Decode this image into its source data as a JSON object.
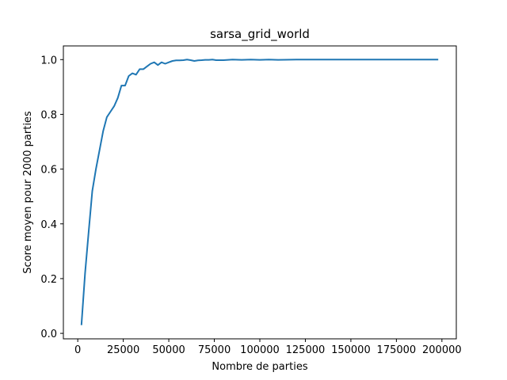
{
  "chart_data": {
    "type": "line",
    "title": "sarsa_grid_world",
    "xlabel": "Nombre de parties",
    "ylabel": "Score moyen pour 2000 parties",
    "xlim": [
      -7900,
      207900
    ],
    "ylim": [
      -0.02,
      1.05
    ],
    "xticks": [
      0,
      25000,
      50000,
      75000,
      100000,
      125000,
      150000,
      175000,
      200000
    ],
    "xtick_labels": [
      "0",
      "25000",
      "50000",
      "75000",
      "100000",
      "125000",
      "150000",
      "175000",
      "200000"
    ],
    "yticks": [
      0.0,
      0.2,
      0.4,
      0.6,
      0.8,
      1.0
    ],
    "ytick_labels": [
      "0.0",
      "0.2",
      "0.4",
      "0.6",
      "0.8",
      "1.0"
    ],
    "grid": false,
    "line_color": "#1f77b4",
    "series": [
      {
        "x": [
          2000,
          4000,
          6000,
          8000,
          10000,
          12000,
          14000,
          16000,
          18000,
          20000,
          22000,
          24000,
          26000,
          28000,
          30000,
          32000,
          34000,
          36000,
          38000,
          40000,
          42000,
          44000,
          46000,
          48000,
          50000,
          52000,
          54000,
          56000,
          58000,
          60000,
          62000,
          64000,
          66000,
          68000,
          70000,
          72000,
          74000,
          76000,
          78000,
          80000,
          85000,
          90000,
          95000,
          100000,
          105000,
          110000,
          120000,
          130000,
          150000,
          175000,
          198000
        ],
        "y": [
          0.03,
          0.22,
          0.37,
          0.52,
          0.6,
          0.67,
          0.74,
          0.79,
          0.81,
          0.83,
          0.86,
          0.905,
          0.905,
          0.94,
          0.95,
          0.945,
          0.965,
          0.965,
          0.975,
          0.985,
          0.99,
          0.98,
          0.99,
          0.985,
          0.99,
          0.995,
          0.997,
          0.997,
          0.998,
          1.0,
          0.998,
          0.995,
          0.997,
          0.998,
          0.999,
          0.999,
          1.0,
          0.998,
          0.998,
          0.998,
          1.0,
          0.999,
          1.0,
          0.999,
          1.0,
          0.999,
          1.0,
          1.0,
          1.0,
          1.0,
          1.0
        ]
      }
    ]
  }
}
